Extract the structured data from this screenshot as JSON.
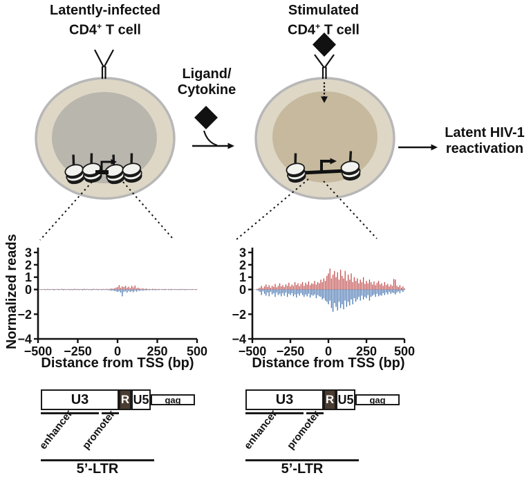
{
  "left_panel": {
    "title_line1": "Latently-infected",
    "cd4": "CD4",
    "cd4_sup": "+",
    "cd4_rest": " T cell"
  },
  "right_panel": {
    "title_line1": "Stimulated",
    "cd4": "CD4",
    "cd4_sup": "+",
    "cd4_rest": " T cell"
  },
  "ligand_label": {
    "line1": "Ligand/",
    "line2": "Cytokine"
  },
  "outcome": {
    "line1": "Latent HIV-1",
    "line2": "reactivation"
  },
  "axes": {
    "y_label": "Normalized reads",
    "x_label": "Distance from TSS (bp)"
  },
  "ltr": {
    "u3": "U3",
    "r": "R",
    "u5": "U5",
    "gag": "gag",
    "enhancer": "enhancer",
    "promoter": "promoter",
    "label": "5’-LTR"
  },
  "colors": {
    "cell_outer": "#ded7c6",
    "membrane": "#b7b7b7",
    "nucleus_latent": "#b9b6ae",
    "nucleus_stimulated": "#c6b99d",
    "plus_strand": "#bf4646",
    "minus_strand": "#3e6fae",
    "ink": "#111111"
  },
  "chart_data": [
    {
      "type": "line",
      "condition": "Latently-infected CD4+ T cell",
      "xlabel": "Distance from TSS (bp)",
      "ylabel": "Normalized reads",
      "xlim": [
        -500,
        500
      ],
      "ylim": [
        -4,
        3
      ],
      "x_ticks": {
        "values": [
          -500,
          -250,
          0,
          250,
          500
        ],
        "labels": [
          "−500",
          "−250",
          "0",
          "250",
          "500"
        ]
      },
      "y_ticks": {
        "values": [
          3,
          2,
          1,
          0,
          -2,
          -4
        ],
        "labels": [
          "3",
          "2",
          "1",
          "0",
          "−2",
          "−4"
        ]
      },
      "grid": false,
      "legend": false,
      "x_start": -500,
      "x_step": 10,
      "series": [
        {
          "name": "plus strand",
          "color": "#bf4646",
          "values": [
            0,
            0.02,
            0.03,
            0.02,
            0.04,
            0.02,
            0.05,
            0.03,
            0.02,
            0.04,
            0.03,
            0.02,
            0.05,
            0.03,
            0.02,
            0.06,
            0.03,
            0.04,
            0.02,
            0.05,
            0.03,
            0.04,
            0.02,
            0.06,
            0.03,
            0.05,
            0.02,
            0.04,
            0.03,
            0.06,
            0.03,
            0.05,
            0.02,
            0.04,
            0.03,
            0.06,
            0.02,
            0.05,
            0.03,
            0.04,
            0.02,
            0.05,
            0.03,
            0.06,
            0.04,
            0.05,
            0.08,
            0.06,
            0.1,
            0.15,
            0.2,
            0.35,
            0.15,
            0.25,
            0.2,
            0.3,
            0.15,
            0.22,
            0.12,
            0.3,
            0.18,
            0.32,
            0.1,
            0.15,
            0.08,
            0.06,
            0.1,
            0.05,
            0.08,
            0.04,
            0.05,
            0.03,
            0.06,
            0.04,
            0.05,
            0.03,
            0.05,
            0.02,
            0.04,
            0.03,
            0.05,
            0.02,
            0.04,
            0.03,
            0.05,
            0.02,
            0.04,
            0.03,
            0.02,
            0.04,
            0.03,
            0.05,
            0.02,
            0.04,
            0.02,
            0.03,
            0.02,
            0.04,
            0.02,
            0.03,
            0.02
          ]
        },
        {
          "name": "minus strand",
          "color": "#3e6fae",
          "values": [
            0,
            -0.02,
            -0.04,
            -0.02,
            -0.03,
            -0.05,
            -0.02,
            -0.04,
            -0.03,
            -0.02,
            -0.06,
            -0.03,
            -0.02,
            -0.05,
            -0.03,
            -0.02,
            -0.06,
            -0.03,
            -0.04,
            -0.02,
            -0.05,
            -0.03,
            -0.06,
            -0.02,
            -0.04,
            -0.03,
            -0.05,
            -0.02,
            -0.06,
            -0.03,
            -0.04,
            -0.02,
            -0.05,
            -0.03,
            -0.06,
            -0.02,
            -0.04,
            -0.03,
            -0.05,
            -0.02,
            -0.06,
            -0.03,
            -0.04,
            -0.02,
            -0.05,
            -0.06,
            -0.1,
            -0.08,
            -0.12,
            -0.15,
            -0.2,
            -0.15,
            -0.25,
            -0.55,
            -0.2,
            -0.15,
            -0.25,
            -0.12,
            -0.2,
            -0.15,
            -0.22,
            -0.1,
            -0.18,
            -0.08,
            -0.12,
            -0.06,
            -0.1,
            -0.05,
            -0.08,
            -0.04,
            -0.06,
            -0.03,
            -0.05,
            -0.04,
            -0.06,
            -0.03,
            -0.05,
            -0.02,
            -0.04,
            -0.03,
            -0.05,
            -0.02,
            -0.04,
            -0.03,
            -0.05,
            -0.02,
            -0.04,
            -0.02,
            -0.05,
            -0.03,
            -0.04,
            -0.02,
            -0.05,
            -0.03,
            -0.04,
            -0.02,
            -0.04,
            -0.03,
            -0.02,
            -0.04,
            -0.02
          ]
        }
      ]
    },
    {
      "type": "line",
      "condition": "Stimulated CD4+ T cell",
      "xlabel": "Distance from TSS (bp)",
      "ylabel": "Normalized reads",
      "xlim": [
        -500,
        500
      ],
      "ylim": [
        -4,
        3
      ],
      "x_ticks": {
        "values": [
          -500,
          -250,
          0,
          250,
          500
        ],
        "labels": [
          "−500",
          "−250",
          "0",
          "250",
          "500"
        ]
      },
      "y_ticks": {
        "values": [
          3,
          2,
          1,
          0,
          -2,
          -4
        ],
        "labels": [
          "3",
          "2",
          "1",
          "0",
          "−2",
          "−4"
        ]
      },
      "grid": false,
      "legend": false,
      "x_start": -500,
      "x_step": 10,
      "series": [
        {
          "name": "plus strand",
          "color": "#bf4646",
          "values": [
            0,
            0,
            0,
            0.05,
            0.08,
            0.15,
            0.3,
            0.12,
            0.25,
            0.4,
            0.2,
            0.35,
            0.15,
            0.3,
            0.22,
            0.45,
            0.18,
            0.3,
            0.5,
            0.25,
            0.35,
            0.2,
            0.42,
            0.3,
            0.55,
            0.25,
            0.4,
            0.3,
            0.6,
            0.35,
            0.5,
            0.28,
            0.45,
            0.6,
            0.3,
            0.55,
            0.4,
            0.65,
            0.35,
            0.5,
            0.45,
            0.7,
            0.4,
            0.6,
            0.5,
            0.8,
            0.6,
            0.9,
            0.7,
            1.1,
            1.3,
            1.7,
            0.9,
            1.2,
            1.5,
            1.0,
            1.4,
            0.8,
            1.6,
            1.1,
            0.9,
            1.5,
            0.7,
            1.2,
            0.8,
            1.3,
            0.6,
            1.0,
            0.7,
            0.9,
            0.5,
            0.8,
            0.6,
            1.0,
            0.45,
            0.7,
            0.5,
            0.8,
            0.6,
            0.4,
            0.65,
            0.35,
            0.55,
            0.7,
            0.4,
            0.5,
            0.3,
            0.6,
            0.35,
            0.45,
            0.25,
            0.4,
            0.3,
            0.85,
            0.8,
            0.3,
            0.2,
            0.35,
            0.15,
            0.25,
            0.1
          ]
        },
        {
          "name": "minus strand",
          "color": "#3e6fae",
          "values": [
            0,
            0,
            0,
            -0.05,
            -0.1,
            -0.2,
            -0.45,
            -0.15,
            -0.35,
            -0.5,
            -0.25,
            -0.55,
            -0.2,
            -0.4,
            -0.3,
            -0.6,
            -0.25,
            -0.45,
            -0.35,
            -0.55,
            -0.3,
            -0.5,
            -0.25,
            -0.6,
            -0.35,
            -0.45,
            -0.3,
            -0.55,
            -0.4,
            -0.65,
            -0.35,
            -0.5,
            -0.3,
            -0.45,
            -0.6,
            -0.4,
            -0.55,
            -0.35,
            -0.65,
            -0.45,
            -0.5,
            -0.4,
            -0.7,
            -0.45,
            -0.55,
            -0.6,
            -0.8,
            -0.7,
            -0.9,
            -1.0,
            -1.2,
            -0.9,
            -1.5,
            -1.8,
            -1.1,
            -1.4,
            -1.7,
            -1.0,
            -1.5,
            -1.2,
            -1.6,
            -0.9,
            -1.4,
            -1.0,
            -1.3,
            -0.8,
            -1.2,
            -0.7,
            -1.0,
            -0.8,
            -0.6,
            -0.9,
            -0.5,
            -0.8,
            -0.6,
            -0.7,
            -0.45,
            -0.9,
            -0.6,
            -0.5,
            -0.4,
            -0.6,
            -0.35,
            -0.55,
            -0.45,
            -0.5,
            -0.3,
            -0.45,
            -0.25,
            -0.4,
            -0.2,
            -0.35,
            -0.25,
            -0.3,
            -0.4,
            -0.25,
            -0.15,
            -0.3,
            -0.1,
            -0.2,
            -0.05
          ]
        }
      ]
    }
  ]
}
